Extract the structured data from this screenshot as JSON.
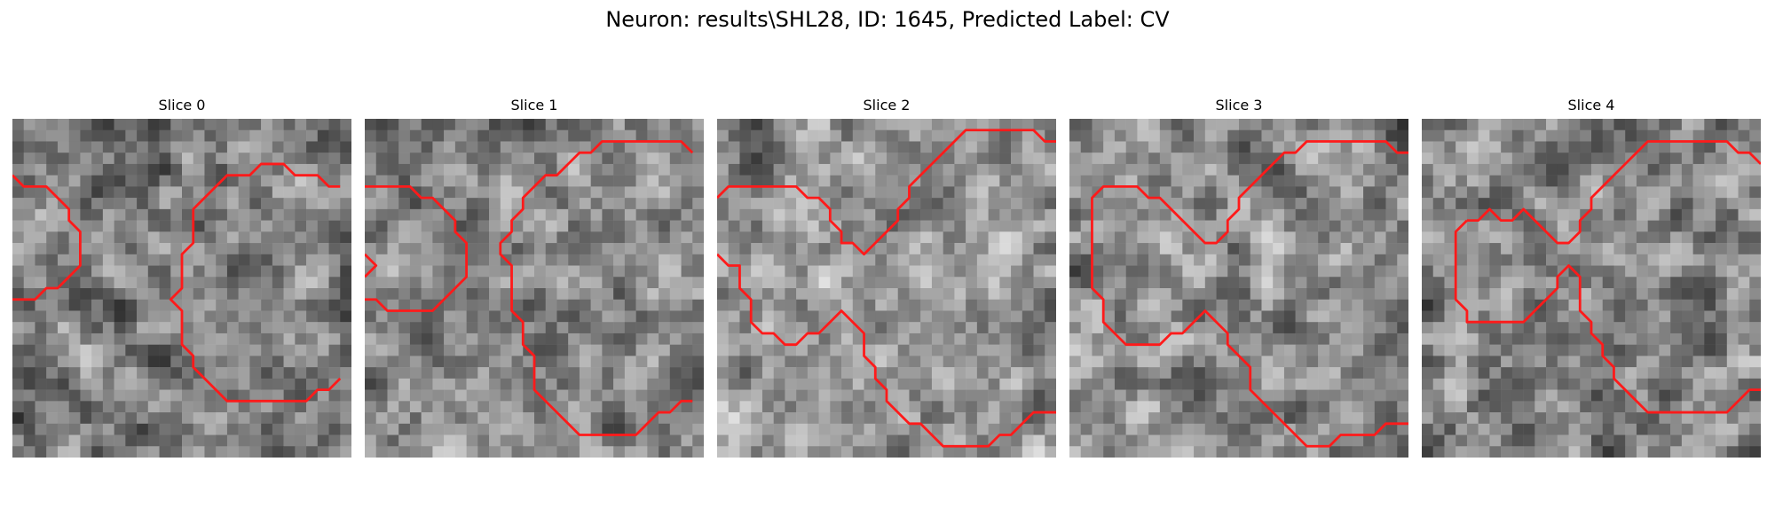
{
  "figure": {
    "title": "Neuron: results\\SHL28, ID: 1645, Predicted Label: CV"
  },
  "colors": {
    "contour": "#ff1a1a",
    "colormap": "grayscale"
  },
  "image_grid_size": 30,
  "slices": [
    {
      "title": "Slice 0",
      "contours": [
        [
          [
            0,
            5
          ],
          [
            1,
            6
          ],
          [
            3,
            6
          ],
          [
            4,
            7
          ],
          [
            5,
            8
          ],
          [
            5,
            9
          ],
          [
            6,
            10
          ],
          [
            6,
            13
          ],
          [
            5,
            14
          ],
          [
            4,
            15
          ],
          [
            3,
            15
          ],
          [
            2,
            16
          ],
          [
            0,
            16
          ]
        ],
        [
          [
            29,
            6
          ],
          [
            28,
            6
          ],
          [
            27,
            5
          ],
          [
            25,
            5
          ],
          [
            24,
            4
          ],
          [
            22,
            4
          ],
          [
            21,
            5
          ],
          [
            19,
            5
          ],
          [
            18,
            6
          ],
          [
            17,
            7
          ],
          [
            16,
            8
          ],
          [
            16,
            11
          ],
          [
            15,
            12
          ],
          [
            15,
            15
          ],
          [
            14,
            16
          ],
          [
            15,
            17
          ],
          [
            15,
            20
          ],
          [
            16,
            21
          ],
          [
            16,
            22
          ],
          [
            17,
            23
          ],
          [
            18,
            24
          ],
          [
            19,
            25
          ],
          [
            26,
            25
          ],
          [
            27,
            24
          ],
          [
            28,
            24
          ],
          [
            29,
            23
          ]
        ]
      ]
    },
    {
      "title": "Slice 1",
      "contours": [
        [
          [
            0,
            6
          ],
          [
            4,
            6
          ],
          [
            5,
            7
          ],
          [
            6,
            7
          ],
          [
            7,
            8
          ],
          [
            8,
            9
          ],
          [
            8,
            10
          ],
          [
            9,
            11
          ],
          [
            9,
            14
          ],
          [
            8,
            15
          ],
          [
            7,
            16
          ],
          [
            6,
            17
          ],
          [
            2,
            17
          ],
          [
            1,
            16
          ],
          [
            0,
            16
          ]
        ],
        [
          [
            0,
            12
          ],
          [
            1,
            13
          ],
          [
            0,
            14
          ]
        ],
        [
          [
            29,
            3
          ],
          [
            28,
            2
          ],
          [
            21,
            2
          ],
          [
            20,
            3
          ],
          [
            19,
            3
          ],
          [
            18,
            4
          ],
          [
            17,
            5
          ],
          [
            16,
            5
          ],
          [
            15,
            6
          ],
          [
            14,
            7
          ],
          [
            14,
            8
          ],
          [
            13,
            9
          ],
          [
            13,
            10
          ],
          [
            12,
            11
          ],
          [
            12,
            12
          ],
          [
            13,
            13
          ],
          [
            13,
            17
          ],
          [
            14,
            18
          ],
          [
            14,
            20
          ],
          [
            15,
            21
          ],
          [
            15,
            24
          ],
          [
            16,
            25
          ],
          [
            17,
            26
          ],
          [
            18,
            27
          ],
          [
            19,
            28
          ],
          [
            24,
            28
          ],
          [
            25,
            27
          ],
          [
            26,
            26
          ],
          [
            27,
            26
          ],
          [
            28,
            25
          ],
          [
            29,
            25
          ]
        ]
      ]
    },
    {
      "title": "Slice 2",
      "contours": [
        [
          [
            0,
            7
          ],
          [
            1,
            6
          ],
          [
            7,
            6
          ],
          [
            8,
            7
          ],
          [
            9,
            7
          ],
          [
            10,
            8
          ],
          [
            10,
            9
          ],
          [
            11,
            10
          ],
          [
            11,
            11
          ],
          [
            12,
            11
          ],
          [
            13,
            12
          ],
          [
            14,
            11
          ],
          [
            15,
            10
          ],
          [
            16,
            9
          ],
          [
            16,
            8
          ],
          [
            17,
            7
          ],
          [
            17,
            6
          ],
          [
            18,
            5
          ],
          [
            19,
            4
          ],
          [
            20,
            3
          ],
          [
            21,
            2
          ],
          [
            22,
            1
          ],
          [
            28,
            1
          ],
          [
            29,
            2
          ],
          [
            30,
            2
          ]
        ],
        [
          [
            0,
            12
          ],
          [
            1,
            13
          ],
          [
            2,
            13
          ],
          [
            2,
            15
          ],
          [
            3,
            16
          ],
          [
            3,
            18
          ],
          [
            4,
            19
          ],
          [
            5,
            19
          ],
          [
            6,
            20
          ],
          [
            7,
            20
          ],
          [
            8,
            19
          ],
          [
            9,
            19
          ],
          [
            10,
            18
          ],
          [
            11,
            17
          ],
          [
            12,
            18
          ],
          [
            13,
            19
          ],
          [
            13,
            21
          ],
          [
            14,
            22
          ],
          [
            14,
            23
          ],
          [
            15,
            24
          ],
          [
            15,
            25
          ],
          [
            16,
            26
          ],
          [
            17,
            27
          ],
          [
            18,
            27
          ],
          [
            19,
            28
          ],
          [
            20,
            29
          ],
          [
            24,
            29
          ],
          [
            25,
            28
          ],
          [
            26,
            28
          ],
          [
            27,
            27
          ],
          [
            28,
            26
          ],
          [
            29,
            26
          ],
          [
            30,
            26
          ]
        ]
      ]
    },
    {
      "title": "Slice 3",
      "contours": [
        [
          [
            30,
            3
          ],
          [
            29,
            3
          ],
          [
            28,
            2
          ],
          [
            21,
            2
          ],
          [
            20,
            3
          ],
          [
            19,
            3
          ],
          [
            18,
            4
          ],
          [
            17,
            5
          ],
          [
            16,
            6
          ],
          [
            15,
            7
          ],
          [
            15,
            8
          ],
          [
            14,
            9
          ],
          [
            14,
            10
          ],
          [
            13,
            11
          ],
          [
            12,
            11
          ],
          [
            11,
            10
          ],
          [
            10,
            9
          ],
          [
            9,
            8
          ],
          [
            8,
            7
          ],
          [
            7,
            7
          ],
          [
            6,
            6
          ],
          [
            3,
            6
          ],
          [
            2,
            7
          ],
          [
            2,
            15
          ],
          [
            3,
            16
          ],
          [
            3,
            18
          ],
          [
            4,
            19
          ],
          [
            5,
            20
          ],
          [
            8,
            20
          ],
          [
            9,
            19
          ],
          [
            10,
            19
          ],
          [
            11,
            18
          ],
          [
            12,
            17
          ],
          [
            13,
            18
          ],
          [
            14,
            19
          ],
          [
            14,
            20
          ],
          [
            15,
            21
          ],
          [
            16,
            22
          ],
          [
            16,
            24
          ],
          [
            17,
            25
          ],
          [
            18,
            26
          ],
          [
            19,
            27
          ],
          [
            20,
            28
          ],
          [
            21,
            29
          ],
          [
            23,
            29
          ],
          [
            24,
            28
          ],
          [
            27,
            28
          ],
          [
            28,
            27
          ],
          [
            30,
            27
          ]
        ]
      ]
    },
    {
      "title": "Slice 4",
      "contours": [
        [
          [
            4,
            9
          ],
          [
            3,
            10
          ],
          [
            3,
            16
          ],
          [
            4,
            17
          ],
          [
            4,
            18
          ],
          [
            9,
            18
          ],
          [
            10,
            17
          ],
          [
            11,
            16
          ],
          [
            12,
            15
          ],
          [
            12,
            14
          ],
          [
            13,
            13
          ],
          [
            14,
            14
          ],
          [
            14,
            17
          ],
          [
            15,
            18
          ],
          [
            15,
            19
          ],
          [
            16,
            20
          ],
          [
            16,
            21
          ],
          [
            17,
            22
          ],
          [
            17,
            23
          ],
          [
            18,
            24
          ],
          [
            19,
            25
          ],
          [
            20,
            26
          ],
          [
            21,
            26
          ],
          [
            27,
            26
          ],
          [
            28,
            25
          ],
          [
            29,
            24
          ],
          [
            30,
            24
          ]
        ],
        [
          [
            30,
            4
          ],
          [
            29,
            3
          ],
          [
            28,
            3
          ],
          [
            27,
            2
          ],
          [
            20,
            2
          ],
          [
            19,
            3
          ],
          [
            18,
            4
          ],
          [
            17,
            5
          ],
          [
            16,
            6
          ],
          [
            15,
            7
          ],
          [
            15,
            8
          ],
          [
            14,
            9
          ],
          [
            14,
            10
          ],
          [
            13,
            11
          ],
          [
            12,
            11
          ],
          [
            11,
            10
          ],
          [
            10,
            9
          ],
          [
            9,
            8
          ],
          [
            8,
            9
          ],
          [
            7,
            9
          ],
          [
            6,
            8
          ],
          [
            5,
            9
          ],
          [
            4,
            9
          ]
        ]
      ]
    }
  ]
}
